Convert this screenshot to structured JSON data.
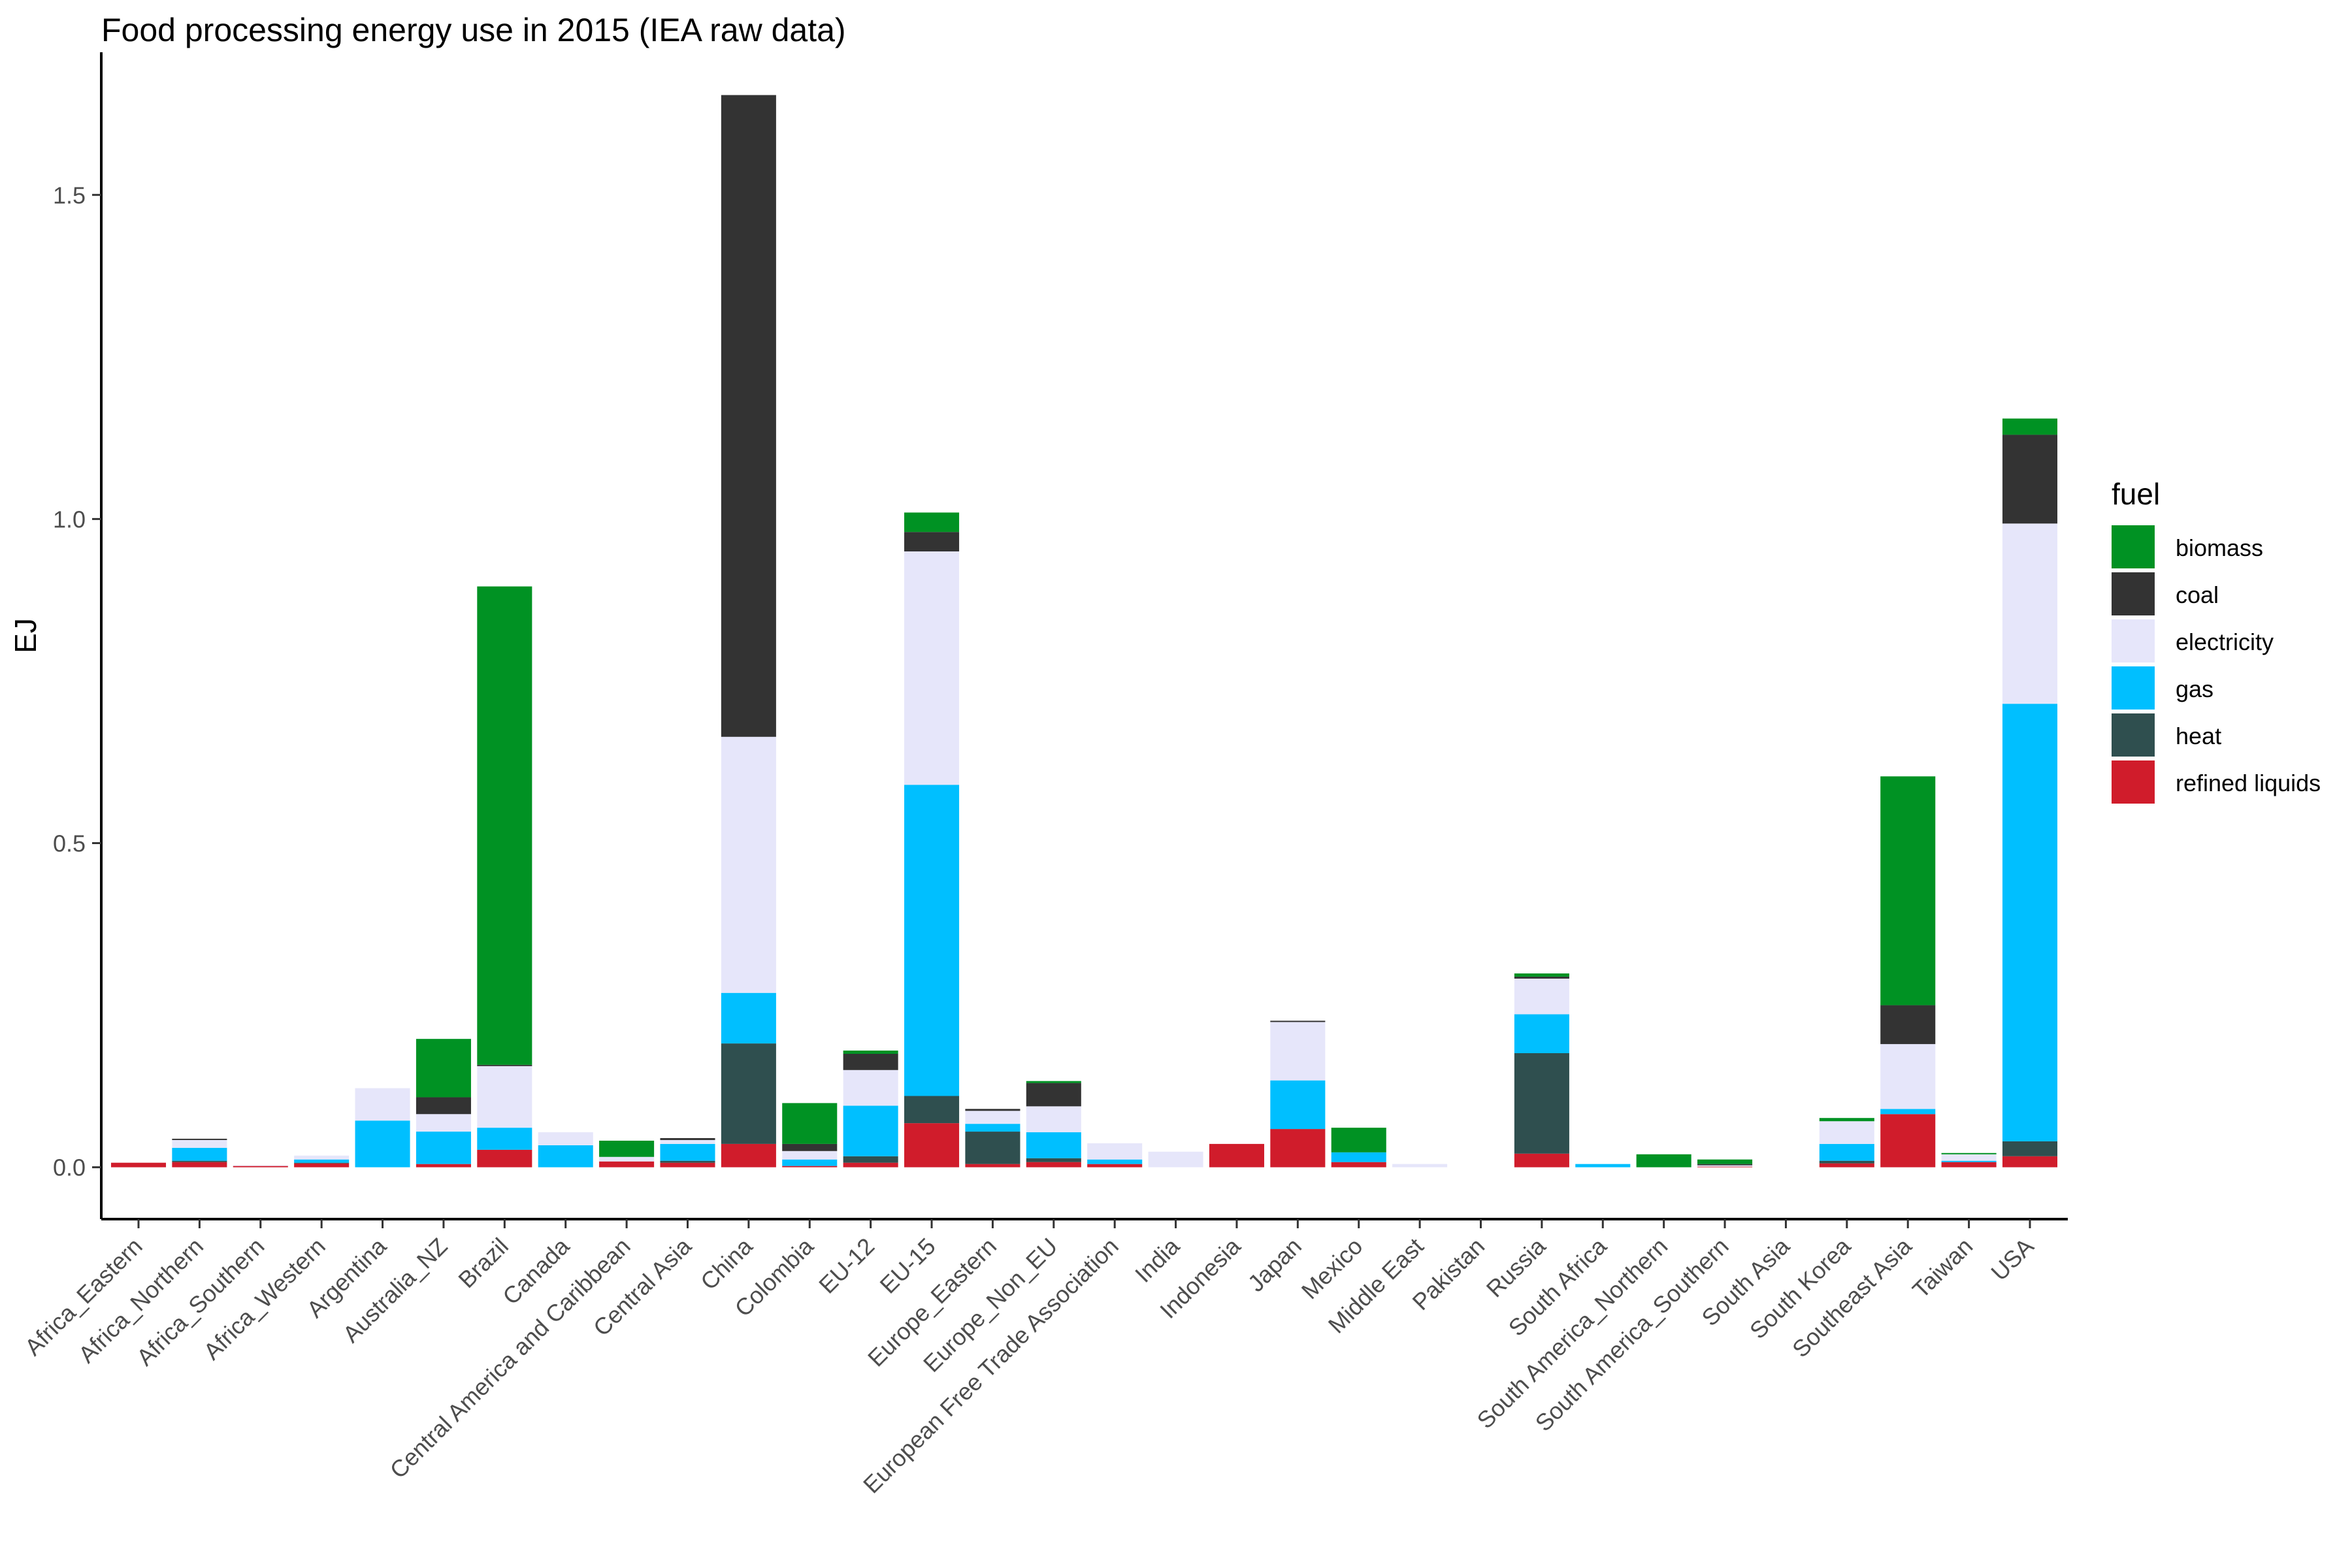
{
  "chart_data": {
    "type": "bar",
    "stacked": true,
    "title": "Food processing energy use in 2015 (IEA raw data)",
    "xlabel": "",
    "ylabel": "EJ",
    "ylim": [
      -0.08,
      1.72
    ],
    "yticks": [
      0.0,
      0.5,
      1.0,
      1.5
    ],
    "ytick_labels": [
      "0.0",
      "0.5",
      "1.0",
      "1.5"
    ],
    "grid": false,
    "legend_position": "right",
    "legend_title": "fuel",
    "categories": [
      "Africa_Eastern",
      "Africa_Northern",
      "Africa_Southern",
      "Africa_Western",
      "Argentina",
      "Australia_NZ",
      "Brazil",
      "Canada",
      "Central America and Caribbean",
      "Central Asia",
      "China",
      "Colombia",
      "EU-12",
      "EU-15",
      "Europe_Eastern",
      "Europe_Non_EU",
      "European Free Trade Association",
      "India",
      "Indonesia",
      "Japan",
      "Mexico",
      "Middle East",
      "Pakistan",
      "Russia",
      "South Africa",
      "South America_Northern",
      "South America_Southern",
      "South Asia",
      "South Korea",
      "Southeast Asia",
      "Taiwan",
      "USA"
    ],
    "series": [
      {
        "name": "refined liquids",
        "color": "#D01C2B",
        "values": [
          0.007,
          0.008,
          0.002,
          0.006,
          0.0,
          0.005,
          0.027,
          0.0,
          0.009,
          0.007,
          0.036,
          0.002,
          0.007,
          0.068,
          0.005,
          0.008,
          0.005,
          0.0,
          0.036,
          0.059,
          0.008,
          0.0,
          0.0,
          0.021,
          0.0,
          0.0,
          0.001,
          0.0,
          0.006,
          0.082,
          0.008,
          0.017
        ]
      },
      {
        "name": "heat",
        "color": "#2F4F4F",
        "values": [
          0.0,
          0.002,
          0.0,
          0.001,
          0.0,
          0.0,
          0.0,
          0.0,
          0.0,
          0.003,
          0.155,
          0.0,
          0.01,
          0.042,
          0.05,
          0.006,
          0.0,
          0.0,
          0.0,
          0.0,
          0.0,
          0.0,
          0.0,
          0.155,
          0.0,
          0.0,
          0.0,
          0.0,
          0.004,
          0.0,
          0.0,
          0.023
        ]
      },
      {
        "name": "gas",
        "color": "#00BFFF",
        "values": [
          0.0,
          0.02,
          0.0,
          0.005,
          0.072,
          0.05,
          0.034,
          0.034,
          0.0,
          0.026,
          0.078,
          0.01,
          0.078,
          0.48,
          0.012,
          0.04,
          0.007,
          0.0,
          0.0,
          0.075,
          0.015,
          0.0,
          0.0,
          0.06,
          0.005,
          0.0,
          0.0,
          0.0,
          0.026,
          0.008,
          0.002,
          0.675
        ]
      },
      {
        "name": "electricity",
        "color": "#E6E6FA",
        "values": [
          0.0,
          0.012,
          0.001,
          0.006,
          0.05,
          0.027,
          0.095,
          0.02,
          0.007,
          0.006,
          0.395,
          0.013,
          0.055,
          0.36,
          0.02,
          0.04,
          0.025,
          0.024,
          0.0,
          0.09,
          0.0,
          0.005,
          0.0,
          0.055,
          0.0,
          0.0,
          0.002,
          0.0,
          0.035,
          0.1,
          0.01,
          0.278
        ]
      },
      {
        "name": "coal",
        "color": "#333333",
        "values": [
          0.0,
          0.002,
          0.0,
          0.0,
          0.0,
          0.026,
          0.002,
          0.0,
          0.0,
          0.003,
          0.99,
          0.011,
          0.025,
          0.03,
          0.003,
          0.036,
          0.0,
          0.0,
          0.0,
          0.002,
          0.0,
          0.0,
          0.0,
          0.003,
          0.0,
          0.0,
          0.002,
          0.0,
          0.0,
          0.06,
          0.0,
          0.137
        ]
      },
      {
        "name": "biomass",
        "color": "#009223",
        "values": [
          0.0,
          0.0,
          0.0,
          0.0,
          0.0,
          0.09,
          0.738,
          0.0,
          0.025,
          0.0,
          0.0,
          0.063,
          0.005,
          0.03,
          0.0,
          0.003,
          0.0,
          0.0,
          0.0,
          0.0,
          0.038,
          0.0,
          0.0,
          0.005,
          0.0,
          0.02,
          0.007,
          0.0,
          0.005,
          0.353,
          0.002,
          0.025
        ]
      }
    ]
  }
}
